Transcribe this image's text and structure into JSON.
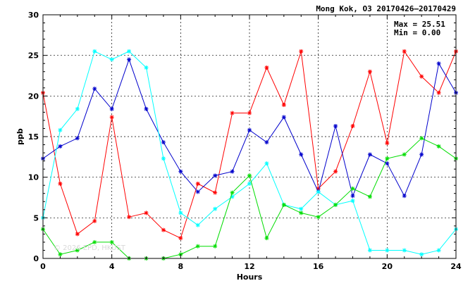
{
  "chart_data": {
    "type": "line",
    "title": "Mong Kok, O3 20170426–20170429",
    "xlabel": "Hours",
    "ylabel": "ppb",
    "xlim": [
      0,
      24
    ],
    "ylim": [
      0,
      30
    ],
    "xticks": [
      0,
      4,
      8,
      12,
      16,
      20,
      24
    ],
    "yticks": [
      0,
      5,
      10,
      15,
      20,
      25,
      30
    ],
    "grid": true,
    "annotations": {
      "max": "Max = 25.51",
      "min": "Min =  0.00"
    },
    "watermark": "© 2026 EPD, HKUST",
    "x": [
      0,
      1,
      2,
      3,
      4,
      5,
      6,
      7,
      8,
      9,
      10,
      11,
      12,
      13,
      14,
      15,
      16,
      17,
      18,
      19,
      20,
      21,
      22,
      23,
      24
    ],
    "series": [
      {
        "color": "#ff0000",
        "values": [
          20.4,
          9.2,
          3.0,
          4.6,
          17.4,
          5.1,
          5.6,
          3.5,
          2.5,
          9.2,
          8.1,
          17.9,
          17.9,
          23.5,
          18.9,
          25.5,
          8.6,
          10.7,
          16.3,
          23.0,
          14.2,
          25.5,
          22.4,
          20.4,
          25.5
        ]
      },
      {
        "color": "#0000cc",
        "values": [
          12.3,
          13.8,
          14.8,
          20.9,
          18.4,
          24.5,
          18.4,
          14.3,
          10.7,
          8.2,
          10.2,
          10.7,
          15.8,
          14.3,
          17.4,
          12.8,
          8.2,
          16.3,
          7.7,
          12.8,
          11.7,
          7.7,
          12.8,
          24.0,
          20.4
        ]
      },
      {
        "color": "#00ffff",
        "values": [
          5.0,
          15.8,
          18.4,
          25.5,
          24.5,
          25.5,
          23.5,
          12.3,
          5.6,
          4.1,
          6.1,
          7.6,
          9.2,
          11.7,
          6.6,
          6.1,
          8.2,
          6.6,
          7.1,
          1.0,
          1.0,
          1.0,
          0.5,
          1.0,
          3.6
        ]
      },
      {
        "color": "#00dd00",
        "values": [
          3.6,
          0.5,
          1.0,
          2.0,
          2.0,
          0.0,
          0.0,
          0.0,
          0.5,
          1.5,
          1.5,
          8.1,
          10.2,
          2.5,
          6.6,
          5.6,
          5.1,
          6.6,
          8.6,
          7.6,
          12.3,
          12.8,
          14.8,
          13.8,
          12.3
        ]
      }
    ]
  }
}
